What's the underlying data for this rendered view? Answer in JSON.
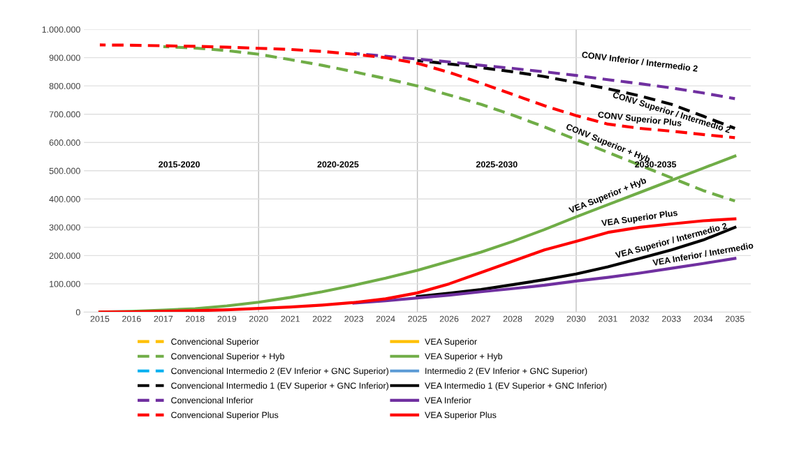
{
  "chart_data": {
    "type": "line",
    "x": [
      2015,
      2016,
      2017,
      2018,
      2019,
      2020,
      2021,
      2022,
      2023,
      2024,
      2025,
      2026,
      2027,
      2028,
      2029,
      2030,
      2031,
      2032,
      2033,
      2034,
      2035
    ],
    "xlim": [
      2014.5,
      2035.5
    ],
    "xticks": [
      2015,
      2016,
      2017,
      2018,
      2019,
      2020,
      2021,
      2022,
      2023,
      2024,
      2025,
      2026,
      2027,
      2028,
      2029,
      2030,
      2031,
      2032,
      2033,
      2034,
      2035
    ],
    "ylim": [
      0,
      1000000
    ],
    "yticks": [
      0,
      {
        "value": 100000,
        "label": "100.000"
      },
      {
        "value": 200000,
        "label": "200.000"
      },
      {
        "value": 300000,
        "label": "300.000"
      },
      {
        "value": 400000,
        "label": "400.000"
      },
      {
        "value": 500000,
        "label": "500.000"
      },
      {
        "value": 600000,
        "label": "600.000"
      },
      {
        "value": 700000,
        "label": "700.000"
      },
      {
        "value": 800000,
        "label": "800.000"
      },
      {
        "value": 900000,
        "label": "900.000"
      },
      {
        "value": 1000000,
        "label": "1.000.000"
      }
    ],
    "grid": "y",
    "legend": "bottom",
    "ref_lines": [
      {
        "axis": "x",
        "value": 2020,
        "color": "#bfbfbf"
      },
      {
        "axis": "x",
        "value": 2025,
        "color": "#bfbfbf"
      },
      {
        "axis": "x",
        "value": 2030,
        "color": "#bfbfbf"
      }
    ],
    "series": [
      {
        "name": "Convencional Superior",
        "color": "#ffc000",
        "line_style": "dashed",
        "values": [
          null,
          null,
          null,
          null,
          null,
          null,
          null,
          null,
          null,
          null,
          null,
          null,
          null,
          null,
          null,
          null,
          null,
          null,
          null,
          null,
          null
        ]
      },
      {
        "name": "Convencional Superior + Hyb",
        "color": "#70ad47",
        "line_style": "dashed",
        "values": [
          null,
          null,
          939000,
          934000,
          925000,
          912000,
          893000,
          873000,
          850000,
          826000,
          800000,
          768000,
          735000,
          697000,
          655000,
          610000,
          565000,
          520000,
          475000,
          430000,
          393000
        ]
      },
      {
        "name": "Convencional Intermedio 2 (EV Inferior + GNC Superior)",
        "color": "#00b0f0",
        "line_style": "dashed",
        "values": [
          null,
          null,
          null,
          null,
          null,
          null,
          null,
          null,
          null,
          null,
          null,
          null,
          null,
          null,
          null,
          null,
          null,
          null,
          null,
          null,
          null
        ]
      },
      {
        "name": "Convencional Intermedio 1 (EV Superior + GNC Inferior)",
        "color": "#000000",
        "line_style": "dashed",
        "values": [
          null,
          null,
          null,
          null,
          null,
          null,
          null,
          null,
          null,
          null,
          890000,
          878000,
          865000,
          850000,
          833000,
          812000,
          790000,
          765000,
          735000,
          693000,
          650000
        ]
      },
      {
        "name": "Convencional Inferior",
        "color": "#7030a0",
        "line_style": "dashed",
        "values": [
          null,
          null,
          null,
          null,
          null,
          null,
          null,
          null,
          915000,
          905000,
          895000,
          885000,
          873000,
          862000,
          850000,
          837000,
          822000,
          808000,
          793000,
          775000,
          755000
        ]
      },
      {
        "name": "Convencional Superior Plus",
        "color": "#ff0000",
        "line_style": "dashed",
        "values": [
          945000,
          944000,
          942000,
          940000,
          937000,
          933000,
          929000,
          922000,
          912000,
          900000,
          880000,
          848000,
          810000,
          770000,
          730000,
          695000,
          665000,
          650000,
          640000,
          628000,
          617000
        ]
      },
      {
        "name": "VEA Superior",
        "color": "#ffc000",
        "line_style": "solid",
        "values": [
          null,
          null,
          null,
          null,
          null,
          null,
          null,
          null,
          null,
          null,
          null,
          null,
          null,
          null,
          null,
          null,
          null,
          null,
          null,
          null,
          null
        ]
      },
      {
        "name": "VEA Superior + Hyb",
        "color": "#70ad47",
        "line_style": "solid",
        "values": [
          0,
          3000,
          7000,
          12000,
          22000,
          35000,
          52000,
          72000,
          95000,
          120000,
          148000,
          180000,
          212000,
          250000,
          292000,
          337000,
          380000,
          423000,
          466000,
          509000,
          552000
        ]
      },
      {
        "name": "Intermedio 2 (EV Inferior + GNC Superior)",
        "color": "#5b9bd5",
        "line_style": "solid",
        "values": [
          null,
          null,
          null,
          null,
          null,
          null,
          null,
          null,
          null,
          null,
          null,
          null,
          null,
          null,
          null,
          null,
          null,
          null,
          null,
          null,
          null
        ]
      },
      {
        "name": "VEA Intermedio 1 (EV Superior + GNC Inferior)",
        "color": "#000000",
        "line_style": "solid",
        "values": [
          null,
          null,
          null,
          null,
          null,
          null,
          null,
          null,
          null,
          null,
          55000,
          67000,
          80000,
          97000,
          115000,
          135000,
          160000,
          190000,
          220000,
          255000,
          300000
        ]
      },
      {
        "name": "VEA Inferior",
        "color": "#7030a0",
        "line_style": "solid",
        "values": [
          null,
          null,
          null,
          null,
          null,
          null,
          null,
          null,
          32000,
          40000,
          50000,
          60000,
          72000,
          83000,
          95000,
          110000,
          123000,
          138000,
          155000,
          172000,
          190000
        ]
      },
      {
        "name": "VEA Superior Plus",
        "color": "#ff0000",
        "line_style": "solid",
        "values": [
          0,
          1000,
          3000,
          5000,
          8000,
          13000,
          18000,
          25000,
          34000,
          47000,
          68000,
          100000,
          140000,
          180000,
          220000,
          250000,
          282000,
          300000,
          312000,
          323000,
          330000
        ]
      }
    ],
    "annotations": [
      "2015-2020",
      "2020-2025",
      "2025-2030",
      "2030-2035",
      {
        "text": "CONV Inferior / Intermedio 2",
        "x": 2032,
        "y": 808000
      },
      {
        "text": "CONV Superior / Intermedio 2",
        "x": 2033,
        "y": 735000
      },
      {
        "text": "CONV Superior Plus",
        "x": 2032,
        "y": 650000
      },
      {
        "text": "CONV Superior + Hyb",
        "x": 2031,
        "y": 565000
      },
      {
        "text": "VEA Superior + Hyb",
        "x": 2031,
        "y": 380000
      },
      {
        "text": "VEA Superior Plus",
        "x": 2032,
        "y": 300000
      },
      {
        "text": "VEA Superior / Intermedio 2",
        "x": 2033,
        "y": 220000
      },
      {
        "text": "VEA Inferior / Intermedio",
        "x": 2034,
        "y": 172000
      }
    ]
  }
}
